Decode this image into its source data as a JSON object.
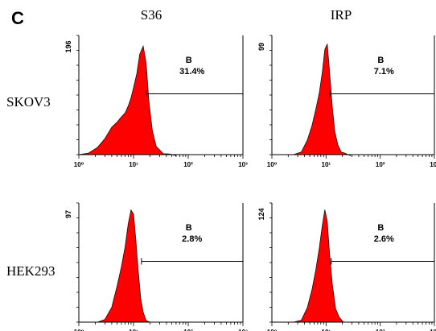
{
  "figure": {
    "panel_letter": "C",
    "column_labels": [
      "S36",
      "IRP"
    ],
    "row_labels": [
      "SKOV3",
      "HEK293"
    ]
  },
  "colors": {
    "histogram_fill": "#ff0000",
    "histogram_outline": "#111111",
    "axis": "#000000"
  },
  "chart_data": [
    {
      "type": "area",
      "row": "SKOV3",
      "column": "S36",
      "y_max_label": "196",
      "gate_label": "B",
      "gate_percent": "31.4%",
      "x_scale": "log",
      "xlim": [
        10,
        10000
      ],
      "x_tick_labels": [
        "10⁰",
        "10¹",
        "10²",
        "10³"
      ],
      "gate_start": 170,
      "histogram": {
        "x": [
          10,
          15,
          22,
          30,
          40,
          50,
          60,
          70,
          80,
          90,
          100,
          115,
          130,
          150,
          170,
          190,
          220,
          260,
          300,
          350,
          450,
          600
        ],
        "y": [
          0,
          4,
          12,
          28,
          45,
          55,
          62,
          70,
          80,
          95,
          110,
          135,
          165,
          180,
          150,
          90,
          40,
          15,
          8,
          3,
          1,
          0
        ]
      },
      "y_max": 196
    },
    {
      "type": "area",
      "row": "SKOV3",
      "column": "IRP",
      "y_max_label": "99",
      "gate_label": "B",
      "gate_percent": "7.1%",
      "x_scale": "log",
      "xlim": [
        10,
        10000
      ],
      "x_tick_labels": [
        "10⁰",
        "10¹",
        "10²",
        "10³"
      ],
      "gate_start": 118,
      "histogram": {
        "x": [
          25,
          35,
          45,
          55,
          65,
          75,
          85,
          95,
          105,
          115,
          130,
          145,
          165,
          190,
          230,
          280
        ],
        "y": [
          0,
          3,
          12,
          25,
          38,
          52,
          68,
          88,
          92,
          72,
          40,
          20,
          8,
          3,
          1,
          0
        ]
      },
      "y_max": 99
    },
    {
      "type": "area",
      "row": "HEK293",
      "column": "S36",
      "y_max_label": "97",
      "gate_label": "B",
      "gate_percent": "2.8%",
      "x_scale": "log",
      "xlim": [
        10,
        10000
      ],
      "x_tick_labels": [
        "10⁰",
        "10¹",
        "10²",
        "10³"
      ],
      "gate_start": 140,
      "histogram": {
        "x": [
          22,
          30,
          40,
          50,
          60,
          70,
          80,
          90,
          100,
          110,
          120,
          135,
          150,
          170,
          200
        ],
        "y": [
          0,
          3,
          12,
          30,
          45,
          62,
          80,
          92,
          88,
          68,
          45,
          20,
          8,
          2,
          0
        ]
      },
      "y_max": 97
    },
    {
      "type": "area",
      "row": "HEK293",
      "column": "IRP",
      "y_max_label": "124",
      "gate_label": "B",
      "gate_percent": "2.6%",
      "x_scale": "log",
      "xlim": [
        10,
        10000
      ],
      "x_tick_labels": [
        "10⁰",
        "10¹",
        "10²",
        "10³"
      ],
      "gate_start": 125,
      "histogram": {
        "x": [
          25,
          35,
          45,
          55,
          65,
          75,
          85,
          95,
          105,
          115,
          130,
          150,
          175,
          210,
          260
        ],
        "y": [
          0,
          3,
          15,
          35,
          55,
          78,
          100,
          118,
          105,
          75,
          40,
          15,
          5,
          1,
          0
        ]
      },
      "y_max": 124
    }
  ]
}
